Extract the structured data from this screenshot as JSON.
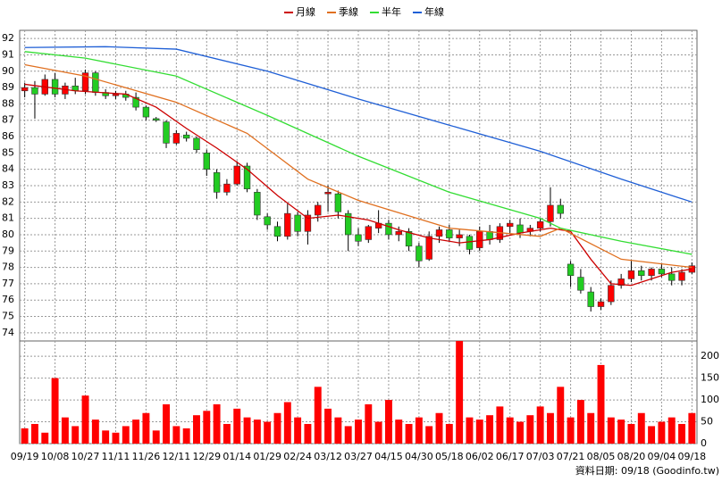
{
  "chart_data": {
    "type": "candlestick",
    "up_color": "#ff0000",
    "down_color": "#22cc22",
    "grid": true,
    "categories": [
      "09/19",
      null,
      null,
      "10/08",
      null,
      null,
      "10/27",
      null,
      null,
      "11/11",
      null,
      null,
      "11/26",
      null,
      null,
      "12/11",
      null,
      null,
      "12/29",
      null,
      null,
      "01/14",
      null,
      null,
      "01/29",
      null,
      null,
      "02/24",
      null,
      null,
      "03/12",
      null,
      null,
      "03/27",
      null,
      null,
      "04/15",
      null,
      null,
      "04/30",
      null,
      null,
      "05/18",
      null,
      null,
      "06/02",
      null,
      null,
      "06/17",
      null,
      null,
      "07/03",
      null,
      null,
      "07/21",
      null,
      null,
      "08/05",
      null,
      null,
      "08/20",
      null,
      null,
      "09/04",
      null,
      null,
      "09/18"
    ],
    "ylim": [
      73.5,
      92.5
    ],
    "yticks": [
      74,
      75,
      76,
      77,
      78,
      79,
      80,
      81,
      82,
      83,
      84,
      85,
      86,
      87,
      88,
      89,
      90,
      91,
      92
    ],
    "candles": [
      [
        88.8,
        89.3,
        88.4,
        89.0
      ],
      [
        89.0,
        89.4,
        87.1,
        88.6
      ],
      [
        88.6,
        89.8,
        88.5,
        89.5
      ],
      [
        89.5,
        89.9,
        88.4,
        88.6
      ],
      [
        88.6,
        89.3,
        88.3,
        89.1
      ],
      [
        89.1,
        89.6,
        88.6,
        88.8
      ],
      [
        88.8,
        90.1,
        88.6,
        89.9
      ],
      [
        89.9,
        90.0,
        88.5,
        88.7
      ],
      [
        88.7,
        88.9,
        88.3,
        88.5
      ],
      [
        88.5,
        88.8,
        88.3,
        88.6
      ],
      [
        88.6,
        88.8,
        88.2,
        88.4
      ],
      [
        88.4,
        88.7,
        87.6,
        87.8
      ],
      [
        87.8,
        87.9,
        87.0,
        87.2
      ],
      [
        87.1,
        87.2,
        86.9,
        87.0
      ],
      [
        86.9,
        87.0,
        85.3,
        85.6
      ],
      [
        85.6,
        86.4,
        85.5,
        86.2
      ],
      [
        86.1,
        86.3,
        85.7,
        85.9
      ],
      [
        85.9,
        86.0,
        85.0,
        85.2
      ],
      [
        85.0,
        85.2,
        83.6,
        84.0
      ],
      [
        83.8,
        84.0,
        82.2,
        82.6
      ],
      [
        82.6,
        83.4,
        82.4,
        83.1
      ],
      [
        83.1,
        84.5,
        83.0,
        84.2
      ],
      [
        84.2,
        84.4,
        82.6,
        82.8
      ],
      [
        82.6,
        82.8,
        80.9,
        81.2
      ],
      [
        81.1,
        81.3,
        80.3,
        80.6
      ],
      [
        80.5,
        80.8,
        79.6,
        79.9
      ],
      [
        79.9,
        81.9,
        79.7,
        81.3
      ],
      [
        81.2,
        81.4,
        79.9,
        80.2
      ],
      [
        80.2,
        81.5,
        79.4,
        81.2
      ],
      [
        81.2,
        82.0,
        80.8,
        81.8
      ],
      [
        82.5,
        83.0,
        81.4,
        82.6
      ],
      [
        82.5,
        82.7,
        81.0,
        81.4
      ],
      [
        81.3,
        81.5,
        79.0,
        80.0
      ],
      [
        80.0,
        80.4,
        79.3,
        79.6
      ],
      [
        79.7,
        80.6,
        79.5,
        80.5
      ],
      [
        80.4,
        81.5,
        80.1,
        80.7
      ],
      [
        80.7,
        80.9,
        79.7,
        80.0
      ],
      [
        80.0,
        80.5,
        79.6,
        80.2
      ],
      [
        80.2,
        80.4,
        79.0,
        79.3
      ],
      [
        79.3,
        79.5,
        78.0,
        78.4
      ],
      [
        78.5,
        80.2,
        78.4,
        79.9
      ],
      [
        79.9,
        80.5,
        79.5,
        80.3
      ],
      [
        80.3,
        80.6,
        79.6,
        79.8
      ],
      [
        79.8,
        80.3,
        79.3,
        80.0
      ],
      [
        79.9,
        80.0,
        78.8,
        79.1
      ],
      [
        79.2,
        80.5,
        79.0,
        80.2
      ],
      [
        80.2,
        80.6,
        79.4,
        79.7
      ],
      [
        79.7,
        80.7,
        79.5,
        80.5
      ],
      [
        80.5,
        80.9,
        80.1,
        80.7
      ],
      [
        80.6,
        81.0,
        79.8,
        80.1
      ],
      [
        80.2,
        80.6,
        79.9,
        80.4
      ],
      [
        80.4,
        81.0,
        80.2,
        80.8
      ],
      [
        80.8,
        82.9,
        80.5,
        81.8
      ],
      [
        81.8,
        82.2,
        81.0,
        81.3
      ],
      [
        78.2,
        78.4,
        76.8,
        77.5
      ],
      [
        77.4,
        77.9,
        76.4,
        76.6
      ],
      [
        76.5,
        76.8,
        75.3,
        75.6
      ],
      [
        75.6,
        76.1,
        75.4,
        75.9
      ],
      [
        75.9,
        77.2,
        75.7,
        76.9
      ],
      [
        76.9,
        77.6,
        76.7,
        77.3
      ],
      [
        77.3,
        78.4,
        77.1,
        77.8
      ],
      [
        77.8,
        78.1,
        77.2,
        77.5
      ],
      [
        77.5,
        78.0,
        77.2,
        77.9
      ],
      [
        77.9,
        78.2,
        77.4,
        77.6
      ],
      [
        77.6,
        78.0,
        76.9,
        77.2
      ],
      [
        77.2,
        77.9,
        76.9,
        77.7
      ],
      [
        77.7,
        78.3,
        77.6,
        78.1
      ]
    ],
    "series": [
      {
        "name": "月線",
        "color": "#cc0000",
        "x": [
          0,
          5,
          10,
          13,
          16,
          19,
          22,
          25,
          28,
          31,
          34,
          37,
          40,
          43,
          46,
          49,
          52,
          54,
          56,
          58,
          60,
          62,
          64,
          66
        ],
        "values": [
          89.2,
          88.8,
          88.6,
          87.8,
          86.5,
          85.3,
          84.0,
          82.4,
          81.0,
          81.2,
          80.9,
          80.3,
          79.8,
          79.5,
          79.7,
          80.1,
          80.4,
          80.2,
          78.5,
          77.0,
          76.9,
          77.3,
          77.7,
          77.9
        ]
      },
      {
        "name": "季線",
        "color": "#e07020",
        "x": [
          0,
          6,
          15,
          22,
          28,
          33,
          42,
          51,
          53,
          59,
          66
        ],
        "values": [
          90.4,
          89.7,
          88.1,
          86.2,
          83.4,
          82.1,
          80.4,
          79.9,
          80.4,
          78.5,
          78.0
        ]
      },
      {
        "name": "半年",
        "color": "#33dd33",
        "x": [
          0,
          6,
          15,
          24,
          33,
          42,
          51,
          53,
          59,
          66
        ],
        "values": [
          91.2,
          90.8,
          89.7,
          87.3,
          84.8,
          82.6,
          81.0,
          80.4,
          79.6,
          78.8
        ]
      },
      {
        "name": "年線",
        "color": "#1f5fd6",
        "x": [
          0,
          8,
          15,
          24,
          33,
          42,
          51,
          59,
          66
        ],
        "values": [
          91.45,
          91.5,
          91.35,
          90.0,
          88.3,
          86.7,
          85.1,
          83.4,
          82.0
        ]
      }
    ],
    "volume": {
      "color": "#ff0000",
      "ylim": [
        0,
        235
      ],
      "yticks": [
        0,
        50,
        100,
        150,
        200
      ],
      "values": [
        35,
        45,
        25,
        150,
        60,
        40,
        110,
        55,
        30,
        25,
        40,
        55,
        70,
        30,
        90,
        40,
        35,
        65,
        75,
        90,
        45,
        80,
        60,
        55,
        50,
        70,
        95,
        60,
        45,
        130,
        80,
        60,
        40,
        55,
        90,
        50,
        100,
        55,
        45,
        60,
        40,
        70,
        45,
        235,
        60,
        55,
        65,
        85,
        60,
        50,
        65,
        85,
        70,
        130,
        60,
        100,
        70,
        180,
        60,
        55,
        45,
        70,
        40,
        50,
        60,
        45,
        70
      ]
    },
    "source": "資料日期: 09/18  (Goodinfo.tw)"
  }
}
